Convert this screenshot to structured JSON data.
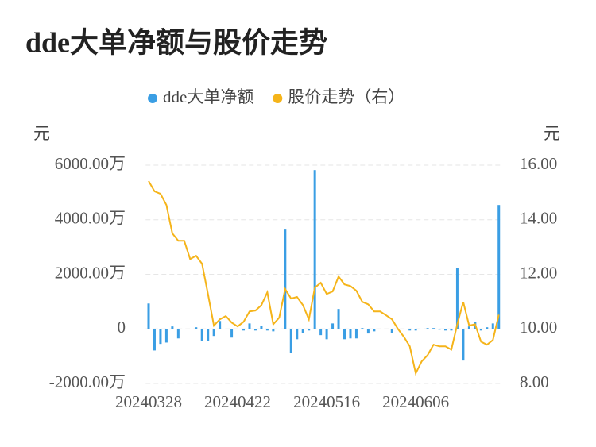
{
  "chart_data": {
    "type": "bar_line",
    "title": "dde大单净额与股价走势",
    "y_label": "元",
    "y2_label": "元",
    "categories": [
      "20240328",
      null,
      null,
      null,
      null,
      null,
      null,
      null,
      null,
      null,
      null,
      null,
      null,
      null,
      null,
      "20240422",
      null,
      null,
      null,
      null,
      null,
      null,
      null,
      null,
      null,
      null,
      null,
      null,
      null,
      null,
      "20240516",
      null,
      null,
      null,
      null,
      null,
      null,
      null,
      null,
      null,
      null,
      null,
      null,
      null,
      null,
      "20240606",
      null,
      null,
      null,
      null,
      null,
      null,
      null,
      null,
      null,
      null,
      null,
      null,
      null,
      null
    ],
    "series": [
      {
        "name": "dde大单净额",
        "color": "#3a9ee4",
        "axis": "y",
        "values": [
          930,
          -790,
          -550,
          -500,
          90,
          -350,
          0,
          0,
          60,
          -440,
          -440,
          -260,
          290,
          0,
          -320,
          0,
          -60,
          200,
          -60,
          120,
          -60,
          -90,
          0,
          3640,
          -870,
          -380,
          -150,
          -60,
          5820,
          -230,
          -380,
          200,
          730,
          -380,
          -350,
          -350,
          30,
          -170,
          -90,
          0,
          0,
          -150,
          0,
          0,
          -60,
          -60,
          0,
          30,
          30,
          -30,
          -60,
          -60,
          2240,
          -1160,
          90,
          260,
          -60,
          60,
          200,
          4540
        ]
      },
      {
        "name": "股价走势（右）",
        "color": "#f5b41a",
        "axis": "y2",
        "values": [
          15.42,
          15.04,
          14.95,
          14.54,
          13.5,
          13.23,
          13.23,
          12.56,
          12.68,
          12.39,
          11.28,
          10.12,
          10.35,
          10.47,
          10.23,
          10.09,
          10.26,
          10.64,
          10.67,
          10.87,
          11.34,
          10.17,
          10.41,
          11.46,
          11.11,
          11.17,
          10.87,
          10.35,
          11.51,
          11.69,
          11.28,
          11.37,
          11.92,
          11.63,
          11.57,
          11.4,
          10.99,
          10.9,
          10.64,
          10.64,
          10.5,
          10.35,
          10.0,
          9.71,
          9.36,
          8.37,
          8.81,
          9.04,
          9.42,
          9.36,
          9.36,
          9.24,
          10.17,
          10.99,
          10.12,
          10.17,
          9.53,
          9.42,
          9.59,
          10.52
        ]
      }
    ],
    "ylim": [
      -2000,
      6000
    ],
    "yticks": [
      {
        "value": -2000,
        "label": "-2000.00万"
      },
      0,
      {
        "value": 2000,
        "label": "2000.00万"
      },
      {
        "value": 4000,
        "label": "4000.00万"
      },
      {
        "value": 6000,
        "label": "6000.00万"
      }
    ],
    "y2lim": [
      8,
      16
    ],
    "y2ticks": [
      {
        "value": 8,
        "label": "8.00"
      },
      {
        "value": 10,
        "label": "10.00"
      },
      {
        "value": 12,
        "label": "12.00"
      },
      {
        "value": 14,
        "label": "14.00"
      },
      {
        "value": 16,
        "label": "16.00"
      }
    ],
    "grid": true,
    "legend": "top"
  }
}
